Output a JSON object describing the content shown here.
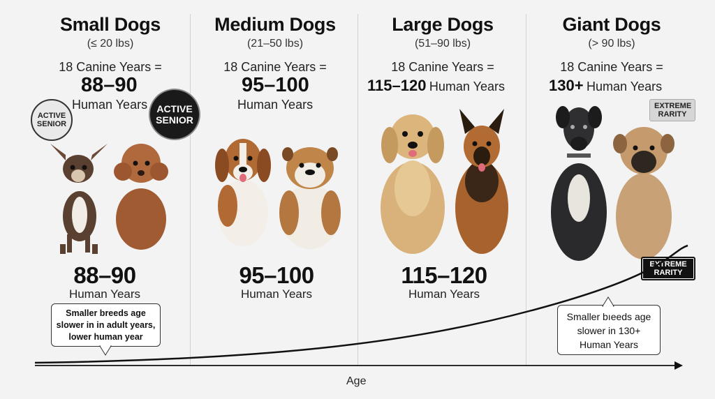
{
  "columns": [
    {
      "title": "Small Dogs",
      "range": "(≤ 20 lbs)",
      "canine": "18 Canine Years =",
      "human_big": "88–90",
      "human_small": "Human Years",
      "bottom_num": "88–90",
      "bottom_label": "Human Years"
    },
    {
      "title": "Medium Dogs",
      "range": "(21–50 lbs)",
      "canine": "18 Canine Years =",
      "human_big": "95–100",
      "human_small": "Human Years",
      "bottom_num": "95–100",
      "bottom_label": "Human Years"
    },
    {
      "title": "Large Dogs",
      "range": "(51–90 lbs)",
      "canine": "18 Canine Years =",
      "human_big": "115–120",
      "human_small": "Human Years",
      "bottom_num": "115–120",
      "bottom_label": "Human Years"
    },
    {
      "title": "Giant Dogs",
      "range": "(> 90 lbs)",
      "canine": "18 Canine Years =",
      "human_big": "130+",
      "human_small": "Human Years"
    }
  ],
  "badges": {
    "active_senior_1": "ACTIVE SENIOR",
    "active_senior_2": "ACTIVE SENIOR",
    "extreme_rarity_top": "EXTREME RARITY",
    "extreme_rarity_bottom": "EXTREME RARITY"
  },
  "notes": {
    "left": [
      "Smaller breeds age",
      "slower in in adult years,",
      "lower human year"
    ],
    "right": [
      "Smaller bıeeds age",
      "slower in 130+",
      "Human Years"
    ]
  },
  "axis": {
    "label": "Age"
  },
  "colors": {
    "background": "#f3f3f3",
    "divider": "#d2d2d2",
    "curve": "#111111"
  }
}
